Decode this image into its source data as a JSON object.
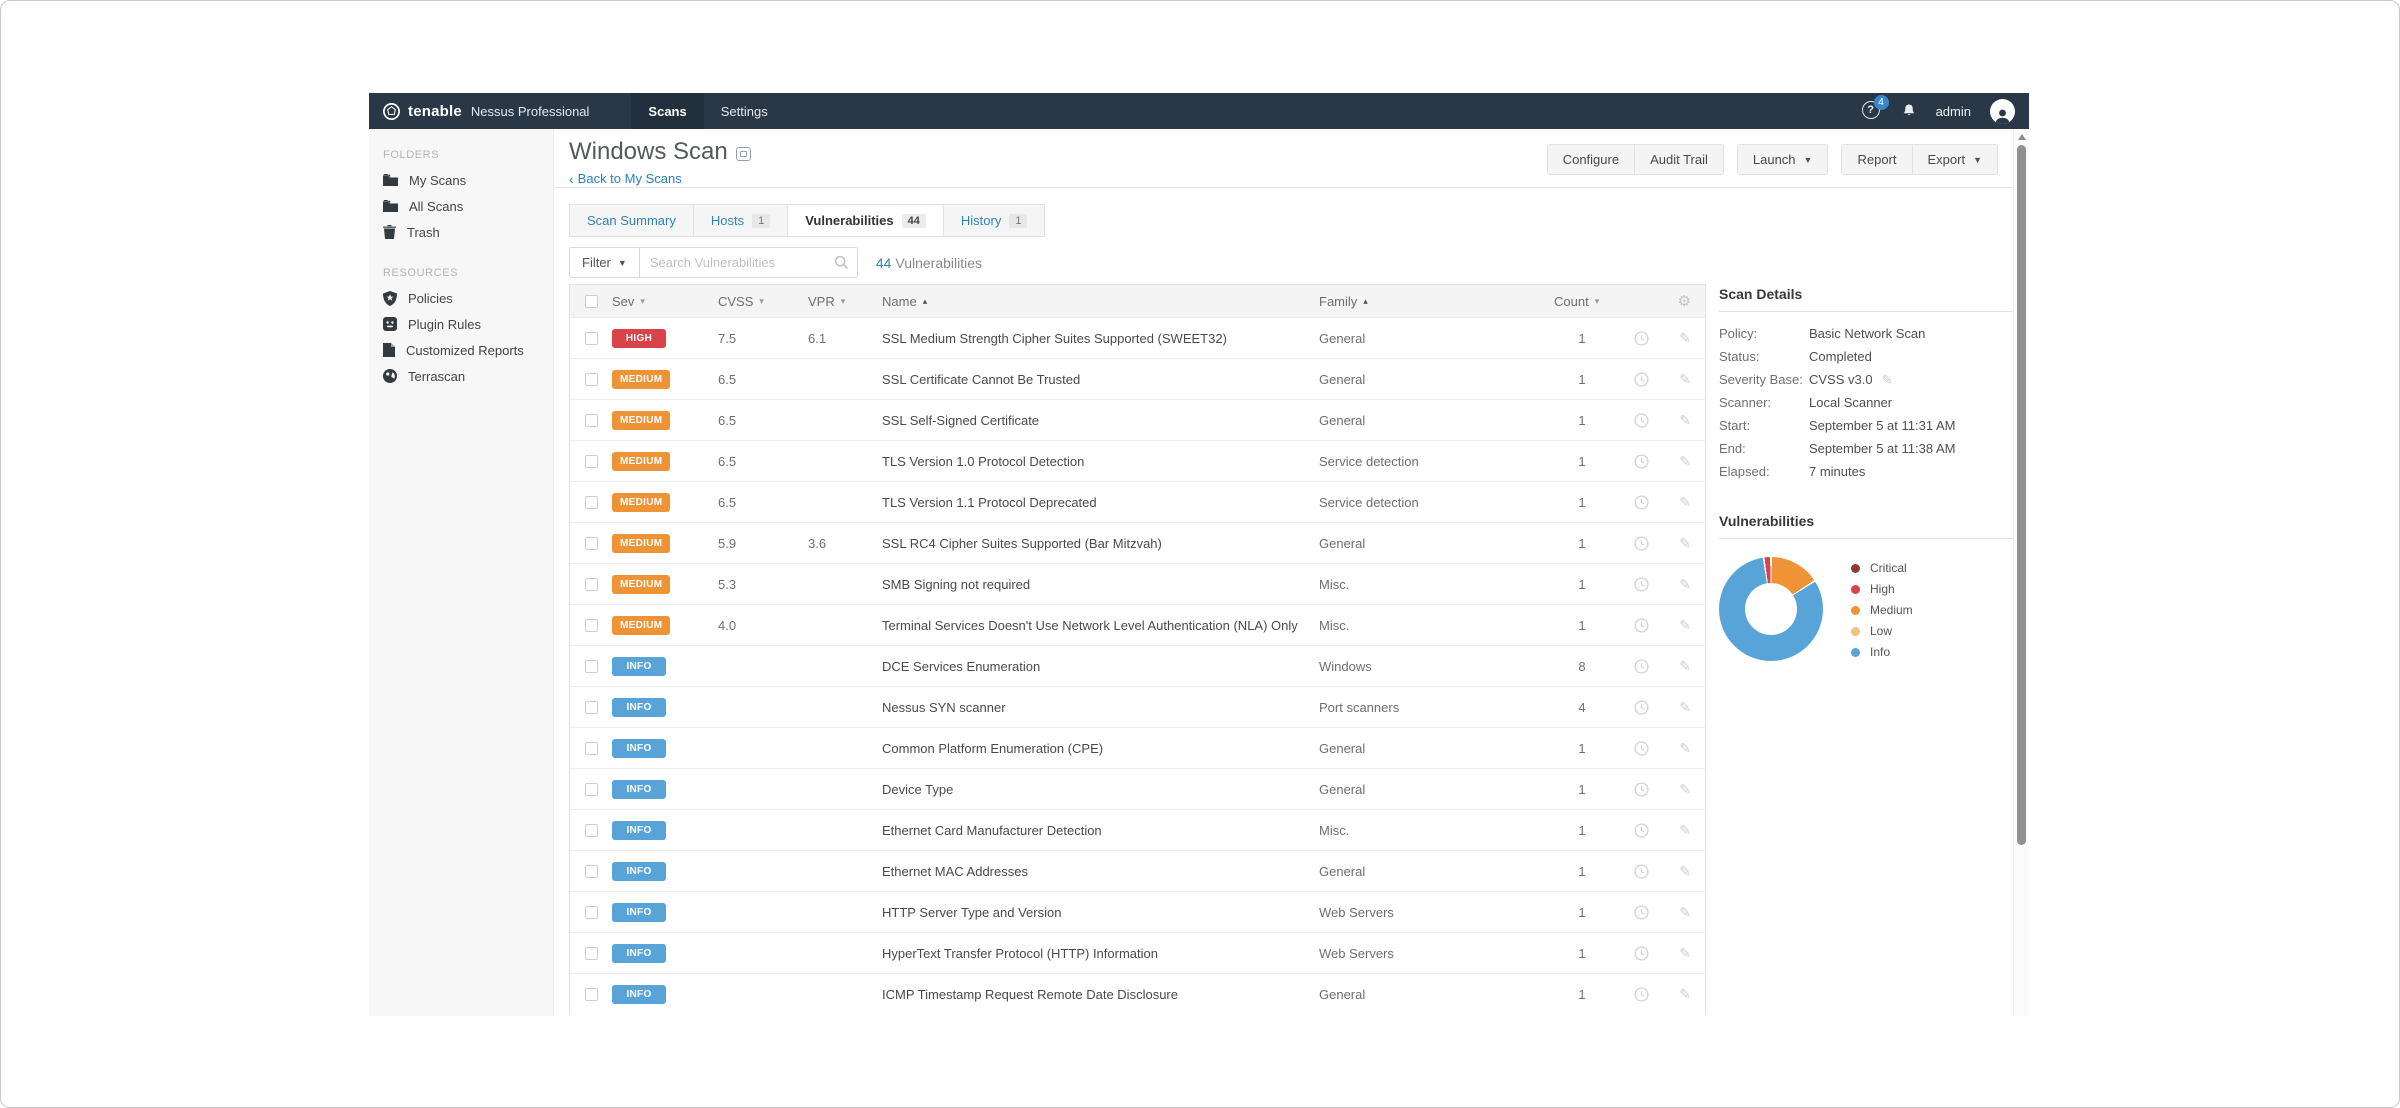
{
  "topbar": {
    "brand": "tenable",
    "product": "Nessus Professional",
    "nav": {
      "items": [
        {
          "label": "Scans"
        },
        {
          "label": "Settings"
        }
      ]
    },
    "help_badge": "4",
    "user": "admin"
  },
  "sidebar": {
    "folders_heading": "FOLDERS",
    "folders": [
      {
        "label": "My Scans"
      },
      {
        "label": "All Scans"
      },
      {
        "label": "Trash"
      }
    ],
    "resources_heading": "RESOURCES",
    "resources": [
      {
        "label": "Policies"
      },
      {
        "label": "Plugin Rules"
      },
      {
        "label": "Customized Reports"
      },
      {
        "label": "Terrascan"
      }
    ]
  },
  "header": {
    "title": "Windows Scan",
    "back_link": "Back to My Scans",
    "back_chevron": "‹",
    "buttons": {
      "configure": "Configure",
      "audit_trail": "Audit Trail",
      "launch": "Launch",
      "report": "Report",
      "export": "Export"
    }
  },
  "tabs": {
    "items": [
      {
        "label": "Scan Summary",
        "count": ""
      },
      {
        "label": "Hosts",
        "count": "1"
      },
      {
        "label": "Vulnerabilities",
        "count": "44"
      },
      {
        "label": "History",
        "count": "1"
      }
    ]
  },
  "filter": {
    "filter_label": "Filter",
    "search_placeholder": "Search Vulnerabilities",
    "result_count": "44",
    "result_label": "Vulnerabilities"
  },
  "table": {
    "columns": [
      {
        "key": "sev",
        "label": "Sev",
        "dir": "down"
      },
      {
        "key": "cvss",
        "label": "CVSS",
        "dir": "down"
      },
      {
        "key": "vpr",
        "label": "VPR",
        "dir": "down"
      },
      {
        "key": "name",
        "label": "Name",
        "dir": "up"
      },
      {
        "key": "family",
        "label": "Family",
        "dir": "up"
      },
      {
        "key": "count",
        "label": "Count",
        "dir": "down"
      }
    ],
    "rows": [
      {
        "severity": "HIGH",
        "cvss": "7.5",
        "vpr": "6.1",
        "name": "SSL Medium Strength Cipher Suites Supported (SWEET32)",
        "family": "General",
        "count": "1"
      },
      {
        "severity": "MEDIUM",
        "cvss": "6.5",
        "vpr": "",
        "name": "SSL Certificate Cannot Be Trusted",
        "family": "General",
        "count": "1"
      },
      {
        "severity": "MEDIUM",
        "cvss": "6.5",
        "vpr": "",
        "name": "SSL Self-Signed Certificate",
        "family": "General",
        "count": "1"
      },
      {
        "severity": "MEDIUM",
        "cvss": "6.5",
        "vpr": "",
        "name": "TLS Version 1.0 Protocol Detection",
        "family": "Service detection",
        "count": "1"
      },
      {
        "severity": "MEDIUM",
        "cvss": "6.5",
        "vpr": "",
        "name": "TLS Version 1.1 Protocol Deprecated",
        "family": "Service detection",
        "count": "1"
      },
      {
        "severity": "MEDIUM",
        "cvss": "5.9",
        "vpr": "3.6",
        "name": "SSL RC4 Cipher Suites Supported (Bar Mitzvah)",
        "family": "General",
        "count": "1"
      },
      {
        "severity": "MEDIUM",
        "cvss": "5.3",
        "vpr": "",
        "name": "SMB Signing not required",
        "family": "Misc.",
        "count": "1"
      },
      {
        "severity": "MEDIUM",
        "cvss": "4.0",
        "vpr": "",
        "name": "Terminal Services Doesn't Use Network Level Authentication (NLA) Only",
        "family": "Misc.",
        "count": "1"
      },
      {
        "severity": "INFO",
        "cvss": "",
        "vpr": "",
        "name": "DCE Services Enumeration",
        "family": "Windows",
        "count": "8"
      },
      {
        "severity": "INFO",
        "cvss": "",
        "vpr": "",
        "name": "Nessus SYN scanner",
        "family": "Port scanners",
        "count": "4"
      },
      {
        "severity": "INFO",
        "cvss": "",
        "vpr": "",
        "name": "Common Platform Enumeration (CPE)",
        "family": "General",
        "count": "1"
      },
      {
        "severity": "INFO",
        "cvss": "",
        "vpr": "",
        "name": "Device Type",
        "family": "General",
        "count": "1"
      },
      {
        "severity": "INFO",
        "cvss": "",
        "vpr": "",
        "name": "Ethernet Card Manufacturer Detection",
        "family": "Misc.",
        "count": "1"
      },
      {
        "severity": "INFO",
        "cvss": "",
        "vpr": "",
        "name": "Ethernet MAC Addresses",
        "family": "General",
        "count": "1"
      },
      {
        "severity": "INFO",
        "cvss": "",
        "vpr": "",
        "name": "HTTP Server Type and Version",
        "family": "Web Servers",
        "count": "1"
      },
      {
        "severity": "INFO",
        "cvss": "",
        "vpr": "",
        "name": "HyperText Transfer Protocol (HTTP) Information",
        "family": "Web Servers",
        "count": "1"
      },
      {
        "severity": "INFO",
        "cvss": "",
        "vpr": "",
        "name": "ICMP Timestamp Request Remote Date Disclosure",
        "family": "General",
        "count": "1"
      }
    ]
  },
  "details": {
    "heading": "Scan Details",
    "rows": [
      {
        "label": "Policy:",
        "value": "Basic Network Scan",
        "editable": false
      },
      {
        "label": "Status:",
        "value": "Completed",
        "editable": false
      },
      {
        "label": "Severity Base:",
        "value": "CVSS v3.0",
        "editable": true
      },
      {
        "label": "Scanner:",
        "value": "Local Scanner",
        "editable": false
      },
      {
        "label": "Start:",
        "value": "September 5 at 11:31 AM",
        "editable": false
      },
      {
        "label": "End:",
        "value": "September 5 at 11:38 AM",
        "editable": false
      },
      {
        "label": "Elapsed:",
        "value": "7 minutes",
        "editable": false
      }
    ]
  },
  "chart_data": {
    "type": "donut",
    "title": "Vulnerabilities",
    "total": 44,
    "legend_position": "right",
    "series": [
      {
        "label": "Critical",
        "value": 0,
        "color": "#8f3a3a"
      },
      {
        "label": "High",
        "value": 1,
        "color": "#d9434a"
      },
      {
        "label": "Medium",
        "value": 7,
        "color": "#ee9336"
      },
      {
        "label": "Low",
        "value": 0,
        "color": "#f3c180"
      },
      {
        "label": "Info",
        "value": 36,
        "color": "#58a4d8"
      }
    ]
  },
  "severity_colors": {
    "high": "#d9434a",
    "medium": "#ee9336",
    "info": "#58a4d8"
  }
}
